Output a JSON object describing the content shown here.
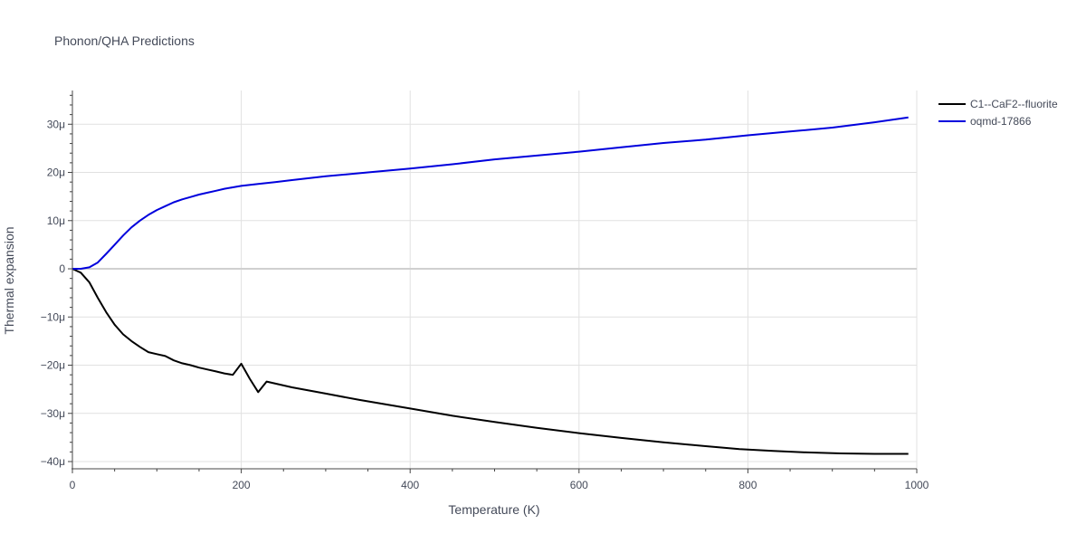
{
  "chart_data": {
    "type": "line",
    "title": "Phonon/QHA Predictions",
    "xlabel": "Temperature (K)",
    "ylabel": "Thermal expansion",
    "xlim": [
      0,
      1000
    ],
    "ylim": [
      -41.5,
      37
    ],
    "x_ticks": [
      0,
      200,
      400,
      600,
      800,
      1000
    ],
    "x_tick_labels": [
      "0",
      "200",
      "400",
      "600",
      "800",
      "1000"
    ],
    "y_ticks": [
      -40,
      -30,
      -20,
      -10,
      0,
      10,
      20,
      30
    ],
    "y_tick_labels": [
      "−40μ",
      "−30μ",
      "−20μ",
      "−10μ",
      "0",
      "10μ",
      "20μ",
      "30μ"
    ],
    "grid": true,
    "legend_position": "top-right",
    "series": [
      {
        "name": "C1--CaF2--fluorite",
        "color": "#000000",
        "x": [
          0,
          10,
          20,
          30,
          40,
          50,
          60,
          70,
          80,
          90,
          100,
          110,
          120,
          130,
          140,
          150,
          160,
          170,
          180,
          190,
          200,
          210,
          220,
          230,
          260,
          300,
          340,
          400,
          450,
          500,
          550,
          600,
          650,
          700,
          750,
          790,
          830,
          870,
          910,
          950,
          990
        ],
        "y": [
          0,
          -0.8,
          -2.8,
          -6,
          -9,
          -11.6,
          -13.6,
          -15,
          -16.2,
          -17.3,
          -17.7,
          -18.1,
          -19,
          -19.6,
          -20,
          -20.5,
          -20.9,
          -21.3,
          -21.7,
          -22,
          -19.7,
          -22.8,
          -25.6,
          -23.4,
          -24.6,
          -25.9,
          -27.2,
          -29,
          -30.5,
          -31.8,
          -33,
          -34.1,
          -35.1,
          -36,
          -36.8,
          -37.4,
          -37.8,
          -38.1,
          -38.3,
          -38.4,
          -38.4
        ]
      },
      {
        "name": "oqmd-17866",
        "color": "#0000dd",
        "x": [
          0,
          10,
          20,
          30,
          40,
          50,
          60,
          70,
          80,
          90,
          100,
          110,
          120,
          130,
          140,
          150,
          160,
          170,
          180,
          190,
          200,
          220,
          240,
          260,
          300,
          350,
          400,
          450,
          500,
          550,
          600,
          650,
          700,
          750,
          800,
          850,
          900,
          950,
          990
        ],
        "y": [
          0,
          0,
          0.3,
          1.3,
          3.1,
          5,
          6.9,
          8.6,
          10,
          11.2,
          12.2,
          13,
          13.8,
          14.4,
          14.9,
          15.4,
          15.8,
          16.2,
          16.6,
          16.9,
          17.2,
          17.6,
          18,
          18.4,
          19.2,
          20,
          20.8,
          21.7,
          22.7,
          23.5,
          24.3,
          25.2,
          26.1,
          26.8,
          27.7,
          28.5,
          29.3,
          30.4,
          31.4
        ]
      }
    ]
  }
}
